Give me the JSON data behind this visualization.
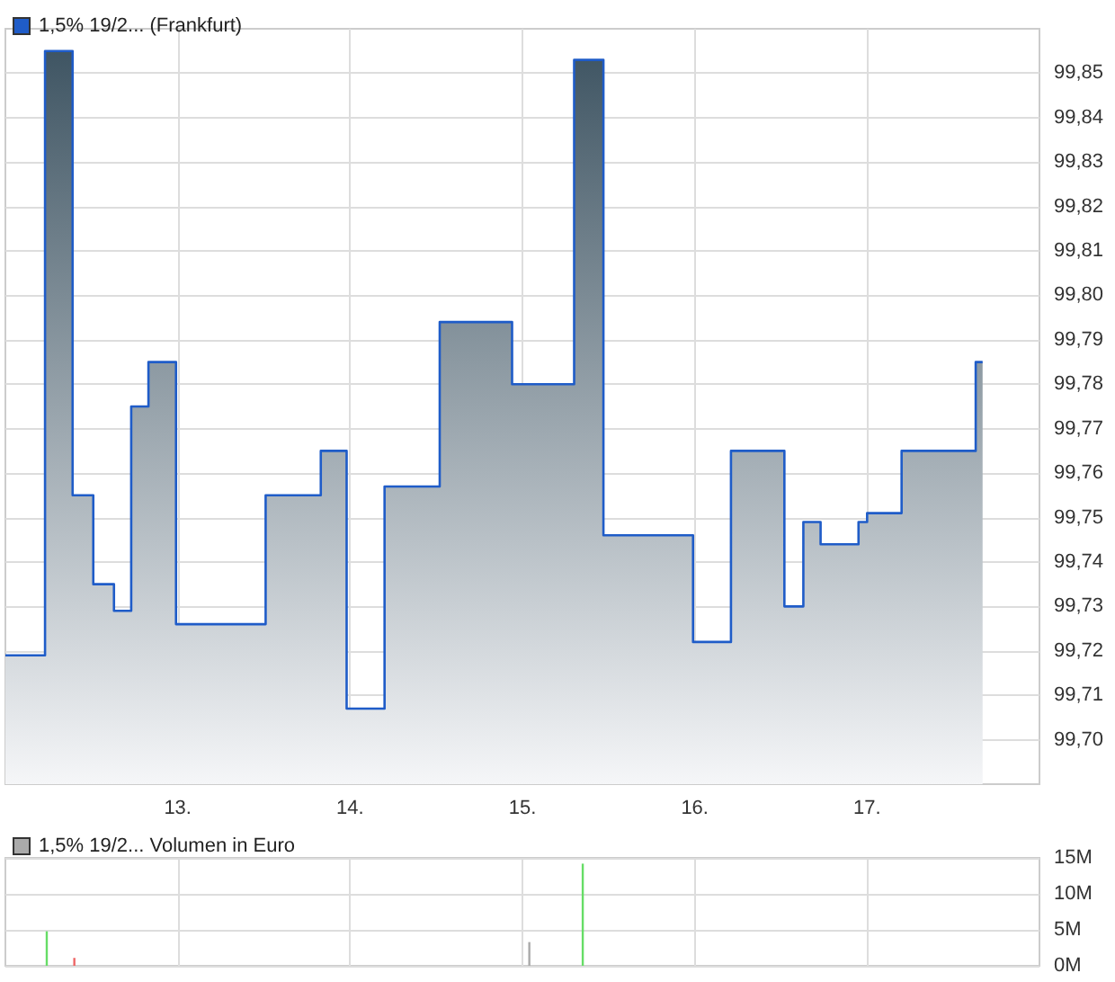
{
  "chart_data": [
    {
      "type": "area",
      "x": [
        12.0,
        12.23,
        12.23,
        12.39,
        12.39,
        12.51,
        12.51,
        12.63,
        12.63,
        12.73,
        12.73,
        12.83,
        12.83,
        12.99,
        12.99,
        13.51,
        13.51,
        13.83,
        13.83,
        13.98,
        13.98,
        14.2,
        14.2,
        14.52,
        14.52,
        14.94,
        14.94,
        15.3,
        15.3,
        15.47,
        15.47,
        15.99,
        15.99,
        16.21,
        16.21,
        16.52,
        16.52,
        16.63,
        16.63,
        16.73,
        16.73,
        16.95,
        16.95,
        17.0,
        17.0,
        17.2,
        17.2,
        17.63,
        17.63,
        17.67
      ],
      "series": [
        {
          "name": "1,5% 19/2... (Frankfurt)",
          "color": "#1f5cc8",
          "values": [
            99.719,
            99.719,
            99.855,
            99.855,
            99.755,
            99.755,
            99.735,
            99.735,
            99.729,
            99.729,
            99.775,
            99.775,
            99.785,
            99.785,
            99.726,
            99.726,
            99.755,
            99.755,
            99.765,
            99.765,
            99.707,
            99.707,
            99.757,
            99.757,
            99.794,
            99.794,
            99.78,
            99.78,
            99.853,
            99.853,
            99.746,
            99.746,
            99.722,
            99.722,
            99.765,
            99.765,
            99.73,
            99.73,
            99.749,
            99.749,
            99.744,
            99.744,
            99.749,
            99.749,
            99.751,
            99.751,
            99.765,
            99.765,
            99.785,
            99.785
          ]
        }
      ],
      "xlim": [
        12,
        18
      ],
      "xticks": [
        {
          "value": 13,
          "label": "13."
        },
        {
          "value": 14,
          "label": "14."
        },
        {
          "value": 15,
          "label": "15."
        },
        {
          "value": 16,
          "label": "16."
        },
        {
          "value": 17,
          "label": "17."
        }
      ],
      "ylim": [
        99.69,
        99.86
      ],
      "yticks": [
        {
          "value": 99.7,
          "label": "99,70"
        },
        {
          "value": 99.71,
          "label": "99,71"
        },
        {
          "value": 99.72,
          "label": "99,72"
        },
        {
          "value": 99.73,
          "label": "99,73"
        },
        {
          "value": 99.74,
          "label": "99,74"
        },
        {
          "value": 99.75,
          "label": "99,75"
        },
        {
          "value": 99.76,
          "label": "99,76"
        },
        {
          "value": 99.77,
          "label": "99,77"
        },
        {
          "value": 99.78,
          "label": "99,78"
        },
        {
          "value": 99.79,
          "label": "99,79"
        },
        {
          "value": 99.8,
          "label": "99,80"
        },
        {
          "value": 99.81,
          "label": "99,81"
        },
        {
          "value": 99.82,
          "label": "99,82"
        },
        {
          "value": 99.83,
          "label": "99,83"
        },
        {
          "value": 99.84,
          "label": "99,84"
        },
        {
          "value": 99.85,
          "label": "99,85"
        }
      ],
      "grid": true,
      "legend": "top left",
      "marker": "none"
    },
    {
      "type": "bar",
      "x": [
        12.24,
        12.4,
        15.04,
        15.35
      ],
      "series": [
        {
          "name": "1,5% 19/2... Volumen in Euro",
          "color": "#aaaaaa",
          "colors": [
            "#66dd66",
            "#ee6666",
            "#aaaaaa",
            "#66dd66"
          ],
          "values": [
            4.8,
            1.1,
            3.3,
            14.2
          ]
        }
      ],
      "xlim": [
        12,
        18
      ],
      "xticks": [
        {
          "value": 13,
          "label": null
        },
        {
          "value": 14,
          "label": null
        },
        {
          "value": 15,
          "label": null
        },
        {
          "value": 16,
          "label": null
        },
        {
          "value": 17,
          "label": null
        }
      ],
      "ylim": [
        0,
        15
      ],
      "yticks": [
        {
          "value": 0,
          "label": "0M"
        },
        {
          "value": 5,
          "label": "5M"
        },
        {
          "value": 10,
          "label": "10M"
        },
        {
          "value": 15,
          "label": "15M"
        }
      ],
      "grid": true,
      "legend": "top left",
      "tick_labels": "y"
    }
  ]
}
